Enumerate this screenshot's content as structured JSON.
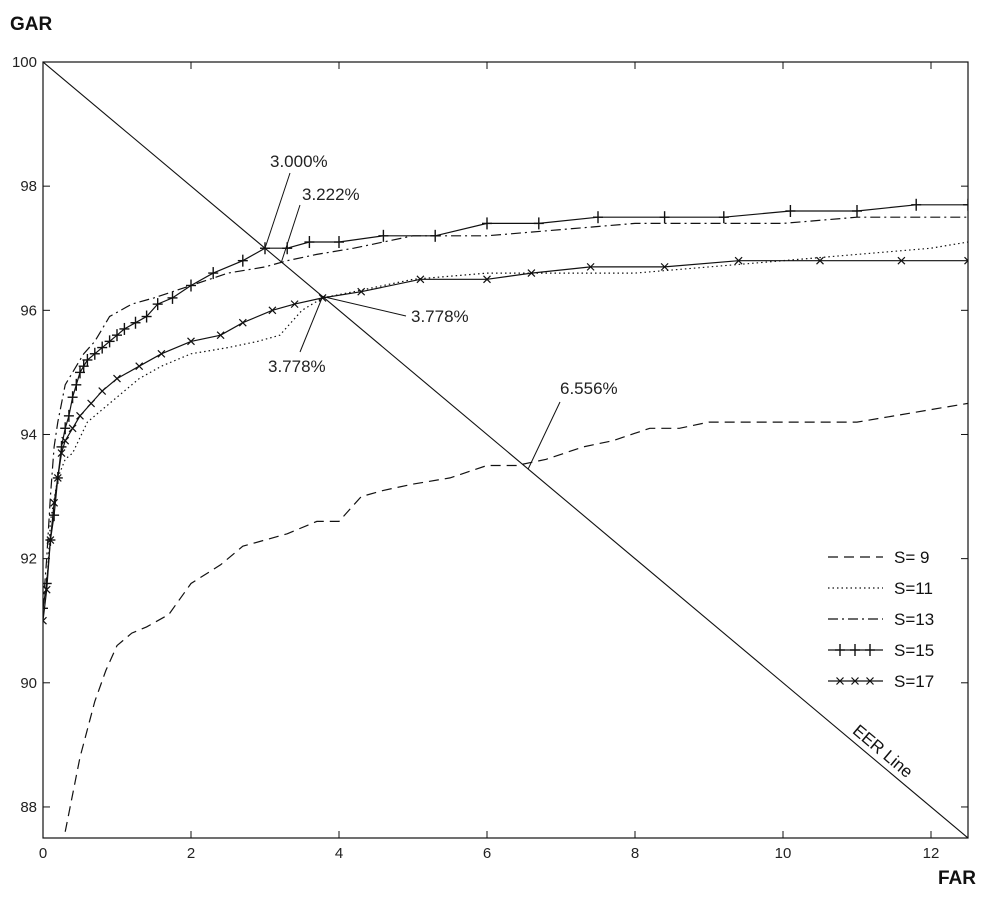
{
  "chart_data": {
    "type": "line",
    "title": "",
    "xlabel": "FAR",
    "ylabel": "GAR",
    "xlim": [
      0,
      12.5
    ],
    "ylim": [
      87.5,
      100
    ],
    "x_ticks": [
      0,
      2,
      4,
      6,
      8,
      10,
      12
    ],
    "y_ticks": [
      88,
      90,
      92,
      94,
      96,
      98,
      100
    ],
    "grid": false,
    "legend_position": "bottom-right",
    "series": [
      {
        "name": "S= 9",
        "style": "dashed",
        "marker": "none",
        "x": [
          0.3,
          0.5,
          0.7,
          0.85,
          1.0,
          1.2,
          1.4,
          1.7,
          2.0,
          2.4,
          2.7,
          3.0,
          3.3,
          3.7,
          4.0,
          4.3,
          4.6,
          5.0,
          5.5,
          6.0,
          6.4,
          6.8,
          7.3,
          7.7,
          8.2,
          8.6,
          9.0,
          9.5,
          10.0,
          10.5,
          11.0,
          11.5,
          12.0,
          12.5
        ],
        "y": [
          87.6,
          88.8,
          89.7,
          90.2,
          90.6,
          90.8,
          90.9,
          91.1,
          91.6,
          91.9,
          92.2,
          92.3,
          92.4,
          92.6,
          92.6,
          93.0,
          93.1,
          93.2,
          93.3,
          93.5,
          93.5,
          93.6,
          93.8,
          93.9,
          94.1,
          94.1,
          94.2,
          94.2,
          94.2,
          94.2,
          94.2,
          94.3,
          94.4,
          94.5
        ]
      },
      {
        "name": "S=11",
        "style": "dotted",
        "marker": "none",
        "x": [
          0.05,
          0.1,
          0.2,
          0.3,
          0.4,
          0.6,
          0.8,
          1.0,
          1.3,
          1.6,
          2.0,
          2.5,
          2.9,
          3.2,
          3.5,
          3.778,
          4.2,
          5.0,
          6.0,
          7.0,
          8.0,
          9.0,
          10.0,
          11.0,
          12.0,
          12.5
        ],
        "y": [
          91.5,
          92.6,
          93.3,
          93.6,
          93.7,
          94.2,
          94.4,
          94.6,
          94.9,
          95.1,
          95.3,
          95.4,
          95.5,
          95.6,
          96.0,
          96.2,
          96.3,
          96.5,
          96.6,
          96.6,
          96.6,
          96.7,
          96.8,
          96.9,
          97.0,
          97.1
        ]
      },
      {
        "name": "S=13",
        "style": "dashdot",
        "marker": "none",
        "x": [
          0.0,
          0.05,
          0.1,
          0.15,
          0.2,
          0.3,
          0.4,
          0.55,
          0.7,
          0.9,
          1.2,
          1.5,
          2.0,
          2.5,
          3.0,
          3.3,
          3.7,
          4.2,
          5.0,
          6.0,
          7.0,
          8.0,
          9.0,
          10.0,
          11.0,
          12.0,
          12.5
        ],
        "y": [
          91.2,
          92.0,
          93.0,
          93.8,
          94.2,
          94.8,
          95.0,
          95.3,
          95.5,
          95.9,
          96.1,
          96.2,
          96.4,
          96.6,
          96.7,
          96.8,
          96.9,
          97.0,
          97.2,
          97.2,
          97.3,
          97.4,
          97.4,
          97.4,
          97.5,
          97.5,
          97.5
        ]
      },
      {
        "name": "S=15",
        "style": "solid",
        "marker": "plus",
        "x": [
          0.0,
          0.05,
          0.1,
          0.15,
          0.2,
          0.25,
          0.3,
          0.35,
          0.4,
          0.45,
          0.5,
          0.55,
          0.6,
          0.7,
          0.8,
          0.9,
          1.0,
          1.1,
          1.25,
          1.4,
          1.55,
          1.75,
          2.0,
          2.3,
          2.7,
          3.0,
          3.3,
          3.6,
          4.0,
          4.6,
          5.3,
          6.0,
          6.7,
          7.5,
          8.4,
          9.2,
          10.1,
          11.0,
          11.8,
          12.5
        ],
        "y": [
          91.2,
          91.6,
          92.3,
          92.7,
          93.3,
          93.8,
          94.1,
          94.3,
          94.6,
          94.8,
          95.0,
          95.1,
          95.2,
          95.3,
          95.4,
          95.5,
          95.6,
          95.7,
          95.8,
          95.9,
          96.1,
          96.2,
          96.4,
          96.6,
          96.8,
          97.0,
          97.0,
          97.1,
          97.1,
          97.2,
          97.2,
          97.4,
          97.4,
          97.5,
          97.5,
          97.5,
          97.6,
          97.6,
          97.7,
          97.7
        ]
      },
      {
        "name": "S=17",
        "style": "solid",
        "marker": "x",
        "x": [
          0.0,
          0.05,
          0.1,
          0.15,
          0.2,
          0.25,
          0.3,
          0.4,
          0.5,
          0.65,
          0.8,
          1.0,
          1.3,
          1.6,
          2.0,
          2.4,
          2.7,
          3.1,
          3.4,
          3.778,
          4.3,
          5.1,
          6.0,
          6.6,
          7.4,
          8.4,
          9.4,
          10.5,
          11.6,
          12.5
        ],
        "y": [
          91.0,
          91.5,
          92.3,
          92.9,
          93.3,
          93.7,
          93.9,
          94.1,
          94.3,
          94.5,
          94.7,
          94.9,
          95.1,
          95.3,
          95.5,
          95.6,
          95.8,
          96.0,
          96.1,
          96.2,
          96.3,
          96.5,
          96.5,
          96.6,
          96.7,
          96.7,
          96.8,
          96.8,
          96.8,
          96.8
        ]
      }
    ],
    "eer_line": {
      "label": "EER Line",
      "x": [
        0,
        12.5
      ],
      "y": [
        100,
        87.5
      ]
    },
    "annotations": [
      {
        "text": "3.000%",
        "x": 3.0,
        "y": 97.0
      },
      {
        "text": "3.222%",
        "x": 3.222,
        "y": 96.778
      },
      {
        "text": "3.778%",
        "x": 3.778,
        "y": 96.222
      },
      {
        "text": "3.778%",
        "x": 3.778,
        "y": 96.222
      },
      {
        "text": "6.556%",
        "x": 6.556,
        "y": 93.444
      }
    ]
  }
}
